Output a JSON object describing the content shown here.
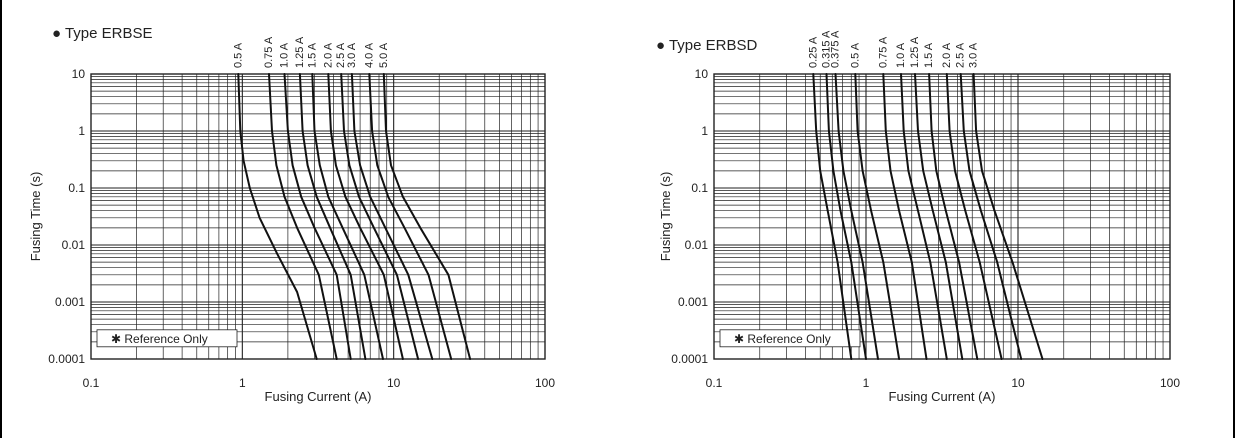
{
  "colors": {
    "grid": "#222222",
    "curve": "#111111",
    "background": "#ffffff"
  },
  "chart_data": [
    {
      "type": "line",
      "title": "● Type ERBSE",
      "xlabel": "Fusing Current (A)",
      "ylabel": "Fusing Time (s)",
      "x_scale": "log",
      "y_scale": "log",
      "xlim": [
        0.1,
        100
      ],
      "ylim": [
        0.0001,
        10
      ],
      "x_ticks": [
        "0.1",
        "1",
        "10",
        "100"
      ],
      "y_ticks": [
        "10",
        "1",
        "0.1",
        "0.01",
        "0.001",
        "0.0001"
      ],
      "grid": true,
      "note": "✱ Reference Only",
      "series": [
        {
          "name": "0.5 A",
          "x": [
            0.94,
            0.97,
            1.02,
            1.12,
            1.3,
            1.7,
            2.3,
            3.1
          ],
          "y": [
            10,
            1,
            0.3,
            0.1,
            0.03,
            0.007,
            0.0015,
            0.0001
          ]
        },
        {
          "name": "0.75 A",
          "x": [
            1.5,
            1.57,
            1.68,
            1.9,
            2.3,
            3.2,
            4.2
          ],
          "y": [
            10,
            1,
            0.25,
            0.07,
            0.02,
            0.003,
            0.0001
          ]
        },
        {
          "name": "1.0 A",
          "x": [
            1.9,
            2.0,
            2.15,
            2.45,
            3.0,
            4.2,
            5.2
          ],
          "y": [
            10,
            1,
            0.25,
            0.07,
            0.02,
            0.003,
            0.0001
          ]
        },
        {
          "name": "1.25 A",
          "x": [
            2.4,
            2.5,
            2.7,
            3.1,
            3.8,
            5.2,
            6.5
          ],
          "y": [
            10,
            1,
            0.25,
            0.07,
            0.02,
            0.003,
            0.0001
          ]
        },
        {
          "name": "1.5 A",
          "x": [
            2.9,
            3.0,
            3.25,
            3.7,
            4.6,
            6.4,
            8.5
          ],
          "y": [
            10,
            1,
            0.25,
            0.07,
            0.02,
            0.003,
            0.0001
          ]
        },
        {
          "name": "2.0 A",
          "x": [
            3.7,
            3.85,
            4.15,
            4.8,
            6.0,
            8.6,
            11.5
          ],
          "y": [
            10,
            1,
            0.25,
            0.07,
            0.02,
            0.003,
            0.0001
          ]
        },
        {
          "name": "2.5 A",
          "x": [
            4.5,
            4.7,
            5.1,
            5.9,
            7.4,
            10.5,
            14.5
          ],
          "y": [
            10,
            1,
            0.25,
            0.07,
            0.02,
            0.003,
            0.0001
          ]
        },
        {
          "name": "3.0 A",
          "x": [
            5.3,
            5.5,
            6.0,
            7.0,
            8.8,
            12.5,
            18
          ],
          "y": [
            10,
            1,
            0.25,
            0.07,
            0.02,
            0.003,
            0.0001
          ]
        },
        {
          "name": "4.0 A",
          "x": [
            6.9,
            7.2,
            7.8,
            9.2,
            11.8,
            17,
            24
          ],
          "y": [
            10,
            1,
            0.25,
            0.07,
            0.02,
            0.003,
            0.0001
          ]
        },
        {
          "name": "5.0 A",
          "x": [
            8.6,
            8.9,
            9.6,
            11.5,
            15,
            23,
            32
          ],
          "y": [
            10,
            1,
            0.25,
            0.07,
            0.02,
            0.003,
            0.0001
          ]
        }
      ]
    },
    {
      "type": "line",
      "title": "● Type ERBSD",
      "xlabel": "Fusing Current (A)",
      "ylabel": "Fusing Time (s)",
      "x_scale": "log",
      "y_scale": "log",
      "xlim": [
        0.1,
        100
      ],
      "ylim": [
        0.0001,
        10
      ],
      "x_ticks": [
        "0.1",
        "1",
        "10",
        "100"
      ],
      "y_ticks": [
        "10",
        "1",
        "0.1",
        "0.01",
        "0.001",
        "0.0001"
      ],
      "grid": true,
      "note": "✱ Reference Only",
      "series": [
        {
          "name": "0.25 A",
          "x": [
            0.45,
            0.47,
            0.5,
            0.56,
            0.65,
            0.8
          ],
          "y": [
            10,
            1,
            0.2,
            0.04,
            0.005,
            0.0001
          ]
        },
        {
          "name": "0.315 A",
          "x": [
            0.55,
            0.57,
            0.61,
            0.68,
            0.8,
            1.0
          ],
          "y": [
            10,
            1,
            0.2,
            0.04,
            0.005,
            0.0001
          ]
        },
        {
          "name": "0.375 A",
          "x": [
            0.63,
            0.66,
            0.71,
            0.8,
            0.95,
            1.2
          ],
          "y": [
            10,
            1,
            0.2,
            0.04,
            0.005,
            0.0001
          ]
        },
        {
          "name": "0.5 A",
          "x": [
            0.85,
            0.88,
            0.95,
            1.08,
            1.3,
            1.65
          ],
          "y": [
            10,
            1,
            0.2,
            0.04,
            0.005,
            0.0001
          ]
        },
        {
          "name": "0.75 A",
          "x": [
            1.3,
            1.35,
            1.45,
            1.65,
            2.0,
            2.5
          ],
          "y": [
            10,
            1,
            0.2,
            0.04,
            0.005,
            0.0001
          ]
        },
        {
          "name": "1.0 A",
          "x": [
            1.7,
            1.77,
            1.9,
            2.2,
            2.65,
            3.4
          ],
          "y": [
            10,
            1,
            0.2,
            0.04,
            0.005,
            0.0001
          ]
        },
        {
          "name": "1.25 A",
          "x": [
            2.1,
            2.2,
            2.38,
            2.75,
            3.35,
            4.3
          ],
          "y": [
            10,
            1,
            0.2,
            0.04,
            0.005,
            0.0001
          ]
        },
        {
          "name": "1.5 A",
          "x": [
            2.6,
            2.7,
            2.9,
            3.35,
            4.1,
            5.4
          ],
          "y": [
            10,
            1,
            0.2,
            0.04,
            0.005,
            0.0001
          ]
        },
        {
          "name": "2.0 A",
          "x": [
            3.4,
            3.55,
            3.85,
            4.5,
            5.6,
            7.8
          ],
          "y": [
            10,
            1,
            0.2,
            0.04,
            0.005,
            0.0001
          ]
        },
        {
          "name": "2.5 A",
          "x": [
            4.2,
            4.4,
            4.8,
            5.7,
            7.3,
            10.5
          ],
          "y": [
            10,
            1,
            0.2,
            0.04,
            0.005,
            0.0001
          ]
        },
        {
          "name": "3.0 A",
          "x": [
            5.1,
            5.3,
            5.8,
            7.0,
            9.2,
            14.5
          ],
          "y": [
            10,
            1,
            0.2,
            0.04,
            0.005,
            0.0001
          ]
        }
      ]
    }
  ]
}
